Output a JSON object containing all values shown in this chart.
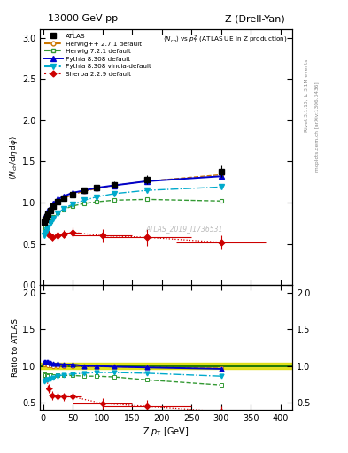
{
  "title_left": "13000 GeV pp",
  "title_right": "Z (Drell-Yan)",
  "plot_title": "<N_{ch}> vs p_{T}^{Z} (ATLAS UE in Z production)",
  "watermark": "ATLAS_2019_I1736531",
  "right_label1": "Rivet 3.1.10, ≥ 3.1M events",
  "right_label2": "mcplots.cern.ch [arXiv:1306.3436]",
  "atlas_x": [
    2,
    4,
    6,
    8,
    12,
    17,
    25,
    35,
    50,
    70,
    90,
    120,
    175,
    300
  ],
  "atlas_y": [
    0.76,
    0.8,
    0.83,
    0.86,
    0.9,
    0.96,
    1.01,
    1.06,
    1.1,
    1.15,
    1.18,
    1.22,
    1.28,
    1.38
  ],
  "atlas_yerr": [
    0.02,
    0.02,
    0.02,
    0.02,
    0.02,
    0.02,
    0.02,
    0.02,
    0.02,
    0.03,
    0.03,
    0.04,
    0.05,
    0.07
  ],
  "herwig271_x": [
    2,
    4,
    6,
    8,
    12,
    17,
    25,
    35,
    50,
    70,
    90,
    120,
    175,
    300
  ],
  "herwig271_y": [
    0.78,
    0.82,
    0.85,
    0.87,
    0.91,
    0.96,
    1.01,
    1.05,
    1.1,
    1.14,
    1.17,
    1.21,
    1.26,
    1.34
  ],
  "herwig721_x": [
    2,
    4,
    6,
    8,
    12,
    17,
    25,
    35,
    50,
    70,
    90,
    120,
    175,
    300
  ],
  "herwig721_y": [
    0.68,
    0.7,
    0.72,
    0.74,
    0.78,
    0.83,
    0.88,
    0.92,
    0.96,
    0.99,
    1.01,
    1.03,
    1.04,
    1.02
  ],
  "pythia8308_x": [
    2,
    4,
    6,
    8,
    12,
    17,
    25,
    35,
    50,
    70,
    90,
    120,
    175,
    300
  ],
  "pythia8308_y": [
    0.8,
    0.84,
    0.87,
    0.9,
    0.94,
    0.99,
    1.04,
    1.08,
    1.12,
    1.15,
    1.18,
    1.21,
    1.26,
    1.32
  ],
  "pythia8vincia_x": [
    2,
    4,
    6,
    8,
    12,
    17,
    25,
    35,
    50,
    70,
    90,
    120,
    175,
    300
  ],
  "pythia8vincia_y": [
    0.6,
    0.64,
    0.67,
    0.7,
    0.75,
    0.81,
    0.87,
    0.93,
    0.98,
    1.03,
    1.07,
    1.11,
    1.15,
    1.19
  ],
  "sherpa229_x": [
    5,
    10,
    15,
    25,
    35,
    50,
    100,
    175,
    300
  ],
  "sherpa229_y": [
    0.65,
    0.62,
    0.58,
    0.6,
    0.62,
    0.64,
    0.6,
    0.58,
    0.52
  ],
  "sherpa229_xerr": [
    3,
    5,
    5,
    5,
    5,
    15,
    50,
    75,
    75
  ],
  "sherpa229_yerr": [
    0.04,
    0.04,
    0.04,
    0.05,
    0.05,
    0.06,
    0.08,
    0.1,
    0.08
  ],
  "ratio_herwig271_y": [
    1.02,
    1.02,
    1.02,
    1.01,
    1.01,
    1.0,
    1.0,
    0.99,
    1.0,
    0.99,
    0.99,
    0.99,
    0.98,
    0.97
  ],
  "ratio_herwig721_y": [
    0.89,
    0.88,
    0.87,
    0.86,
    0.87,
    0.86,
    0.87,
    0.87,
    0.87,
    0.86,
    0.86,
    0.85,
    0.81,
    0.74
  ],
  "ratio_pythia8308_y": [
    1.05,
    1.05,
    1.05,
    1.05,
    1.04,
    1.03,
    1.03,
    1.02,
    1.02,
    1.0,
    1.0,
    0.99,
    0.98,
    0.96
  ],
  "ratio_pythia8vincia_y": [
    0.79,
    0.8,
    0.81,
    0.81,
    0.83,
    0.84,
    0.86,
    0.88,
    0.89,
    0.9,
    0.91,
    0.91,
    0.9,
    0.86
  ],
  "ratio_sherpa229_y": [
    0.85,
    0.69,
    0.6,
    0.59,
    0.58,
    0.58,
    0.49,
    0.45,
    0.38
  ],
  "ratio_sherpa229_yerr": [
    0.06,
    0.06,
    0.06,
    0.05,
    0.05,
    0.06,
    0.07,
    0.09,
    0.07
  ],
  "atlas_band_y": 1.0,
  "atlas_band_err": 0.04,
  "color_atlas": "#000000",
  "color_herwig271": "#cc7700",
  "color_herwig721": "#339933",
  "color_pythia8308": "#0000cc",
  "color_pythia8vincia": "#00aacc",
  "color_sherpa229": "#cc0000",
  "ylim_main": [
    0.0,
    3.1
  ],
  "ylim_ratio": [
    0.4,
    2.1
  ],
  "xlim": [
    -5,
    420
  ]
}
